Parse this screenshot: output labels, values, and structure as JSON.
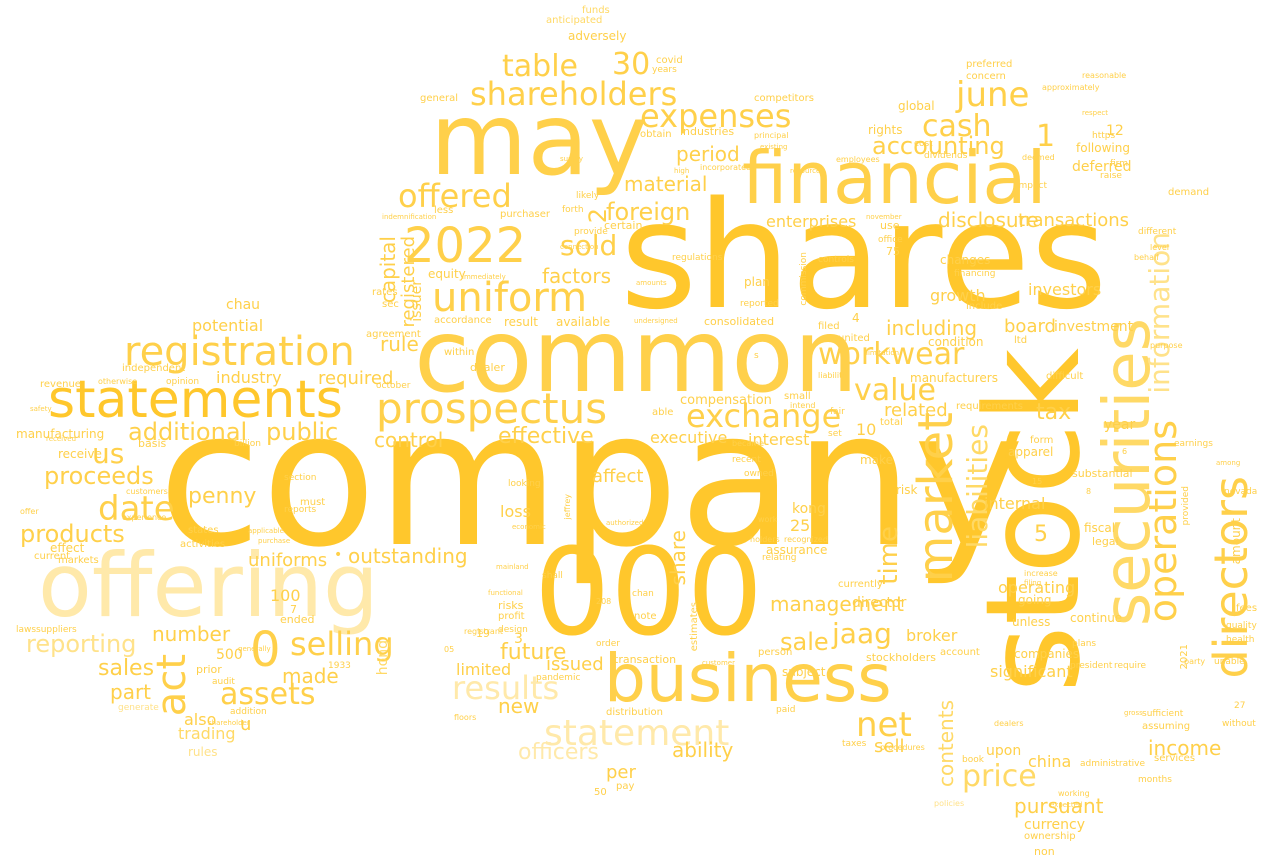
{
  "words": {
    "company": "company",
    "shares": "shares",
    "stock": "stock",
    "common": "common",
    "may": "may",
    "financial": "financial",
    "offering": "offering",
    "n000": "000",
    "business": "business",
    "securities": "securities",
    "market": "market",
    "statements": "statements",
    "prospectus": "prospectus",
    "registration": "registration",
    "uniform": "uniform",
    "y2022": "2022",
    "directors": "directors",
    "operations": "operations",
    "shareholders": "shareholders",
    "table": "table",
    "n30": "30",
    "statement": "statement",
    "results": "results",
    "date": "date",
    "act": "act",
    "offered": "offered",
    "exchange": "exchange",
    "expenses": "expenses",
    "information": "information",
    "liabilities": "liabilities",
    "contents": "contents",
    "price": "price",
    "workwear": "workwear",
    "june": "june",
    "cash": "cash",
    "accounting": "accounting",
    "selling": "selling",
    "assets": "assets",
    "value": "value",
    "jaag": "jaag",
    "n0": "0",
    "net": "net",
    "us": "us",
    "sold": "sold",
    "foreign": "foreign",
    "material": "material",
    "period": "period",
    "time": "time",
    "including": "including",
    "products": "products",
    "proceeds": "proceeds",
    "additional": "additional",
    "public": "public",
    "effective": "effective",
    "future": "future",
    "management": "management",
    "sale": "sale",
    "penny": "penny",
    "reporting": "reporting",
    "officers": "officers",
    "ability": "ability",
    "tax": "tax",
    "income": "income",
    "pursuant": "pursuant",
    "capital": "capital",
    "registered": "registered",
    "factors": "factors",
    "share": "share",
    "outstanding": "outstanding",
    "sales": "sales",
    "part": "part",
    "made": "made",
    "number": "number",
    "control": "control",
    "rule": "rule",
    "required": "required",
    "industry": "industry",
    "potential": "potential",
    "uniforms": "uniforms",
    "limited": "limited",
    "issued": "issued",
    "new": "new",
    "loss": "loss",
    "affect": "affect",
    "executive": "executive",
    "interest": "interest",
    "compensation": "compensation",
    "related": "related",
    "broker": "broker",
    "director": "director",
    "kong": "kong",
    "transactions": "transactions",
    "disclosure": "disclosure",
    "enterprises": "enterprises",
    "board": "board",
    "investment": "investment",
    "investors": "investors",
    "growth": "growth",
    "internal": "internal",
    "operating": "operating",
    "significant": "significant",
    "companies": "companies",
    "currency": "currency",
    "china": "china",
    "upon": "upon",
    "sell": "sell",
    "year": "year",
    "deferred": "deferred",
    "following": "following",
    "adversely": "adversely",
    "n1": "1",
    "n2": "2",
    "n3": "3",
    "n5": "5",
    "n10": "10",
    "n12": "12",
    "n25": "25",
    "n100": "100",
    "n500": "500",
    "n4": "4",
    "u": "u",
    "per": "per",
    "also": "also",
    "trading": "trading",
    "rules": "rules",
    "chau": "chau",
    "hong": "hong",
    "issuer": "issuer",
    "equity": "equity",
    "result": "result",
    "available": "available",
    "consolidated": "consolidated",
    "subject": "subject",
    "assurance": "assurance",
    "risk": "risk",
    "substantial": "substantial",
    "apparel": "apparel",
    "going": "going",
    "unless": "unless",
    "continue": "continue",
    "account": "account",
    "stockholders": "stockholders",
    "manufacturers": "manufacturers",
    "requirements": "requirements",
    "condition": "condition",
    "ltd": "ltd",
    "changes": "changes",
    "financing": "financing",
    "plan": "plan",
    "commission": "commission",
    "controls": "controls",
    "global": "global",
    "rights": "rights",
    "cost": "cost",
    "preferred": "preferred",
    "concern": "concern",
    "dividends": "dividends",
    "impact": "impact",
    "services": "services",
    "months": "months",
    "amount": "amount",
    "fiscal": "fiscal",
    "legal": "legal",
    "purchaser": "purchaser",
    "less": "less",
    "industries": "industries",
    "certain": "certain",
    "accordance": "accordance",
    "agreement": "agreement",
    "dealer": "dealer",
    "within": "within",
    "risks": "risks",
    "profit": "profit",
    "registrant": "registrant",
    "transaction": "transaction",
    "pandemic": "pandemic",
    "estimates": "estimates",
    "distribution": "distribution",
    "revenue": "revenue",
    "manufacturing": "manufacturing",
    "receive": "receive",
    "basis": "basis",
    "effect": "effect",
    "markets": "markets",
    "current": "current",
    "customers": "customers",
    "activities": "activities",
    "states": "states",
    "ended": "ended",
    "prior": "prior",
    "audit": "audit",
    "state": "state",
    "must": "must",
    "covid": "covid",
    "funds": "funds",
    "anticipated": "anticipated",
    "sec": "sec",
    "rates": "rates",
    "general": "general",
    "obtain": "obtain",
    "competitors": "competitors",
    "difficult": "difficult",
    "small": "small",
    "fair": "fair",
    "make": "make",
    "total": "total",
    "translated": "translated",
    "provided": "provided",
    "assuming": "assuming",
    "recent": "recent",
    "owned": "owned",
    "work": "work",
    "note": "note",
    "design": "design",
    "order": "order",
    "pay": "pay",
    "n50": "50",
    "n19": "19",
    "n7": "7",
    "n75": "75",
    "n27": "27",
    "n1933": "1933",
    "n2021": "2021",
    "set": "set",
    "form": "form",
    "entities": "entities",
    "filed": "filed",
    "use": "use",
    "united": "united",
    "include": "include",
    "independent": "independent",
    "opinion": "opinion",
    "october": "october",
    "billion": "billion",
    "section": "section",
    "reports": "reports",
    "need": "need",
    "fees": "fees",
    "demand": "demand",
    "quality": "quality",
    "earnings": "earnings",
    "health": "health",
    "nevada": "nevada",
    "among": "among",
    "years": "years",
    "https": "https",
    "firm": "firm",
    "raise": "raise",
    "different": "different",
    "office": "office",
    "level": "level",
    "november": "november",
    "table2": "institutional",
    "ownership": "ownership",
    "non": "non",
    "able": "able",
    "shall": "shall",
    "looking": "looking",
    "jeffrey": "jeffrey",
    "chan": "chan",
    "available2": "accounting",
    "experience": "experience",
    "employees": "employees",
    "generate": "generate",
    "addition": "addition",
    "regulations": "regulations",
    "provide": "provide",
    "likely": "likely",
    "forth": "forth",
    "high": "high",
    "supply": "supply",
    "suppliers": "suppliers",
    "laws": "laws",
    "offer": "offer",
    "liability": "liability",
    "intend": "intend",
    "became": "became",
    "without": "without",
    "unable": "unable",
    "party": "party",
    "president": "president",
    "require": "require",
    "administrative": "administrative",
    "sufficient": "sufficient",
    "book": "book",
    "dealers": "dealers",
    "taxes": "taxes",
    "paid": "paid",
    "relating": "relating",
    "person": "person",
    "floors": "floors",
    "expected": "expected",
    "increase": "increase",
    "working": "working",
    "plans": "plans",
    "purpose": "purpose",
    "filing": "filing",
    "incorporated": "incorporated",
    "principal": "principal",
    "respect": "respect",
    "deemed": "deemed",
    "approximately": "approximately",
    "reasonable": "reasonable",
    "existing": "existing",
    "resources": "resources",
    "policies": "policies",
    "behalf": "behalf",
    "business2": "management",
    "n8": "8",
    "n6": "6",
    "n15": "15",
    "n208": "208",
    "n05": "05",
    "s": "s",
    "procedures": "procedures",
    "limitation": "limitation",
    "reported": "reported",
    "undersigned": "undersigned",
    "amounts": "amounts",
    "gross": "gross",
    "mainland": "mainland",
    "economic": "economic",
    "functional": "functional",
    "authorized": "authorized",
    "holders": "holders",
    "recognized": "recognized",
    "currently": "currently",
    "otherwise": "otherwise",
    "shareholder": "shareholder",
    "received": "received",
    "safety": "safety",
    "customer": "customer",
    "generally": "generally",
    "applicable": "applicable",
    "immediately": "immediately",
    "indemnification": "indemnification",
    "connection": "connection",
    "purchase": "purchase"
  }
}
